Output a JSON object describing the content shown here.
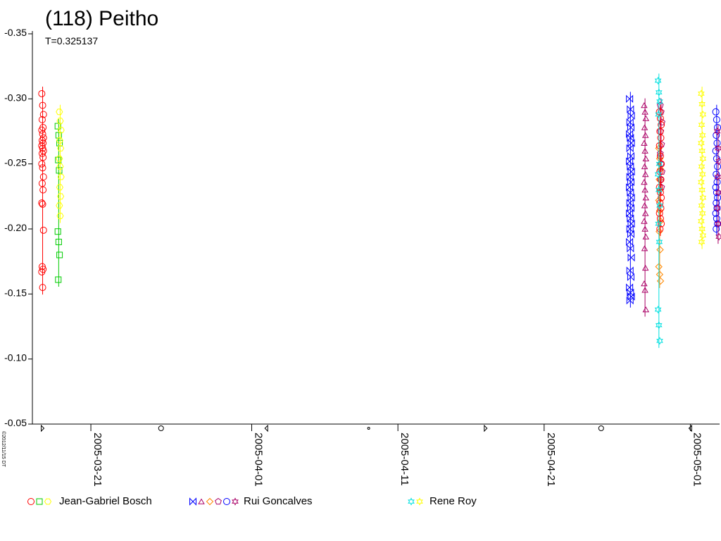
{
  "chart_data": {
    "type": "scatter",
    "title": "(118) Peitho",
    "subtitle": "T=0.325137",
    "y_ticks": [
      "-0.35",
      "-0.30",
      "-0.25",
      "-0.20",
      "-0.15",
      "-0.10",
      "-0.05"
    ],
    "ylim": [
      -0.35,
      -0.05
    ],
    "y_inverted": true,
    "x_ticks": [
      "2005-03-21",
      "2005-04-01",
      "2005-04-11",
      "2005-04-21",
      "2005-05-01"
    ],
    "xlim": [
      "2005-03-17",
      "2005-05-03"
    ],
    "grid": false,
    "legend_position": "bottom",
    "legend": [
      {
        "name": "Jean-Gabriel Bosch",
        "symbols": [
          "circle",
          "square",
          "hexagon"
        ],
        "colors": [
          "#ff0000",
          "#00cc00",
          "#ffff00"
        ]
      },
      {
        "name": "Rui Goncalves",
        "symbols": [
          "bowtie",
          "triangle",
          "diamond",
          "pentagon",
          "circle",
          "star"
        ],
        "colors": [
          "#0000ff",
          "#aa0066",
          "#ff8800",
          "#aa0066",
          "#0000ff",
          "#aa0066"
        ]
      },
      {
        "name": "Rene Roy",
        "symbols": [
          "star",
          "star"
        ],
        "colors": [
          "#00e0e0",
          "#ffff00"
        ]
      }
    ],
    "phase_markers": [
      {
        "date": "2005-03-17.7",
        "symbol": "tri-right"
      },
      {
        "date": "2005-03-25.8",
        "symbol": "circle"
      },
      {
        "date": "2005-04-02.0",
        "symbol": "tri-left"
      },
      {
        "date": "2005-04-09.0",
        "symbol": "dot"
      },
      {
        "date": "2005-04-17.0",
        "symbol": "tri-right"
      },
      {
        "date": "2005-04-24.9",
        "symbol": "circle"
      },
      {
        "date": "2005-05-01.0",
        "symbol": "tri-left"
      }
    ],
    "series": [
      {
        "date": "2005-03-17.7",
        "observer": "Jean-Gabriel Bosch",
        "color": "#ff0000",
        "symbol": "circle",
        "values": [
          -0.304,
          -0.295,
          -0.288,
          -0.284,
          -0.278,
          -0.276,
          -0.273,
          -0.27,
          -0.268,
          -0.266,
          -0.264,
          -0.262,
          -0.26,
          -0.258,
          -0.255,
          -0.25,
          -0.247,
          -0.24,
          -0.235,
          -0.23,
          -0.22,
          -0.219,
          -0.199,
          -0.171,
          -0.169,
          -0.167,
          -0.155
        ]
      },
      {
        "date": "2005-03-18.8",
        "observer": "Jean-Gabriel Bosch",
        "color": "#00cc00",
        "symbol": "square",
        "values": [
          -0.279,
          -0.272,
          -0.266,
          -0.253,
          -0.245,
          -0.198,
          -0.19,
          -0.18,
          -0.161
        ]
      },
      {
        "date": "2005-03-18.9",
        "observer": "Jean-Gabriel Bosch",
        "color": "#ffff00",
        "symbol": "hexagon",
        "values": [
          -0.29,
          -0.283,
          -0.276,
          -0.268,
          -0.262,
          -0.254,
          -0.248,
          -0.24,
          -0.232,
          -0.225,
          -0.218,
          -0.21
        ]
      },
      {
        "date": "2005-04-26.9",
        "observer": "Rui Goncalves",
        "color": "#0000ff",
        "symbol": "bowtie",
        "values": [
          -0.3,
          -0.292,
          -0.287,
          -0.282,
          -0.278,
          -0.273,
          -0.27,
          -0.266,
          -0.262,
          -0.256,
          -0.252,
          -0.248,
          -0.244,
          -0.24,
          -0.236,
          -0.232,
          -0.228,
          -0.224,
          -0.22,
          -0.216,
          -0.212,
          -0.208,
          -0.204,
          -0.2,
          -0.196,
          -0.19,
          -0.185,
          -0.178,
          -0.168,
          -0.163,
          -0.155,
          -0.151,
          -0.148,
          -0.145
        ]
      },
      {
        "date": "2005-04-27.9",
        "observer": "Rui Goncalves",
        "color": "#aa0066",
        "symbol": "triangle",
        "values": [
          -0.295,
          -0.29,
          -0.285,
          -0.278,
          -0.272,
          -0.266,
          -0.26,
          -0.254,
          -0.248,
          -0.242,
          -0.236,
          -0.23,
          -0.224,
          -0.218,
          -0.212,
          -0.206,
          -0.2,
          -0.194,
          -0.185,
          -0.17,
          -0.158,
          -0.153,
          -0.138
        ]
      },
      {
        "date": "2005-04-28.9",
        "observer": "Rui Goncalves",
        "color": "#ff8800",
        "symbol": "diamond",
        "values": [
          -0.262,
          -0.254,
          -0.246,
          -0.238,
          -0.23,
          -0.222,
          -0.214,
          -0.206,
          -0.198,
          -0.184,
          -0.171,
          -0.165,
          -0.16
        ]
      },
      {
        "date": "2005-04-29.0",
        "observer": "Rui Goncalves",
        "color": "#aa0066",
        "symbol": "pentagon",
        "values": [
          -0.295,
          -0.29,
          -0.282,
          -0.275,
          -0.265,
          -0.258,
          -0.25,
          -0.244,
          -0.238,
          -0.232
        ]
      },
      {
        "date": "2005-04-28.95",
        "observer": "Jean-Gabriel Bosch",
        "color": "#ff0000",
        "symbol": "circle",
        "values": [
          -0.29,
          -0.285,
          -0.28,
          -0.275,
          -0.27,
          -0.264,
          -0.256,
          -0.25,
          -0.244,
          -0.238,
          -0.232,
          -0.228,
          -0.224,
          -0.22,
          -0.216,
          -0.212,
          -0.208,
          -0.204,
          -0.2
        ]
      },
      {
        "date": "2005-04-28.85",
        "observer": "Rene Roy",
        "color": "#00e0e0",
        "symbol": "star",
        "values": [
          -0.314,
          -0.305,
          -0.298,
          -0.288,
          -0.25,
          -0.242,
          -0.23,
          -0.218,
          -0.204,
          -0.19,
          -0.138,
          -0.126,
          -0.114
        ]
      },
      {
        "date": "2005-05-01.8",
        "observer": "Rene Roy",
        "color": "#ffff00",
        "symbol": "star",
        "values": [
          -0.304,
          -0.296,
          -0.288,
          -0.28,
          -0.272,
          -0.266,
          -0.26,
          -0.254,
          -0.248,
          -0.242,
          -0.236,
          -0.23,
          -0.224,
          -0.218,
          -0.212,
          -0.206,
          -0.2,
          -0.195,
          -0.19
        ]
      },
      {
        "date": "2005-05-02.8",
        "observer": "Rui Goncalves",
        "color": "#0000ff",
        "symbol": "circle",
        "values": [
          -0.29,
          -0.284,
          -0.278,
          -0.272,
          -0.266,
          -0.26,
          -0.254,
          -0.248,
          -0.242,
          -0.236,
          -0.232,
          -0.228,
          -0.224,
          -0.22,
          -0.216,
          -0.212,
          -0.208,
          -0.204,
          -0.2
        ]
      },
      {
        "date": "2005-05-02.9",
        "observer": "Rui Goncalves",
        "color": "#aa0066",
        "symbol": "star",
        "values": [
          -0.275,
          -0.262,
          -0.252,
          -0.24,
          -0.228,
          -0.216,
          -0.204,
          -0.194
        ]
      }
    ],
    "credit": "©2012/11/15 DT"
  }
}
